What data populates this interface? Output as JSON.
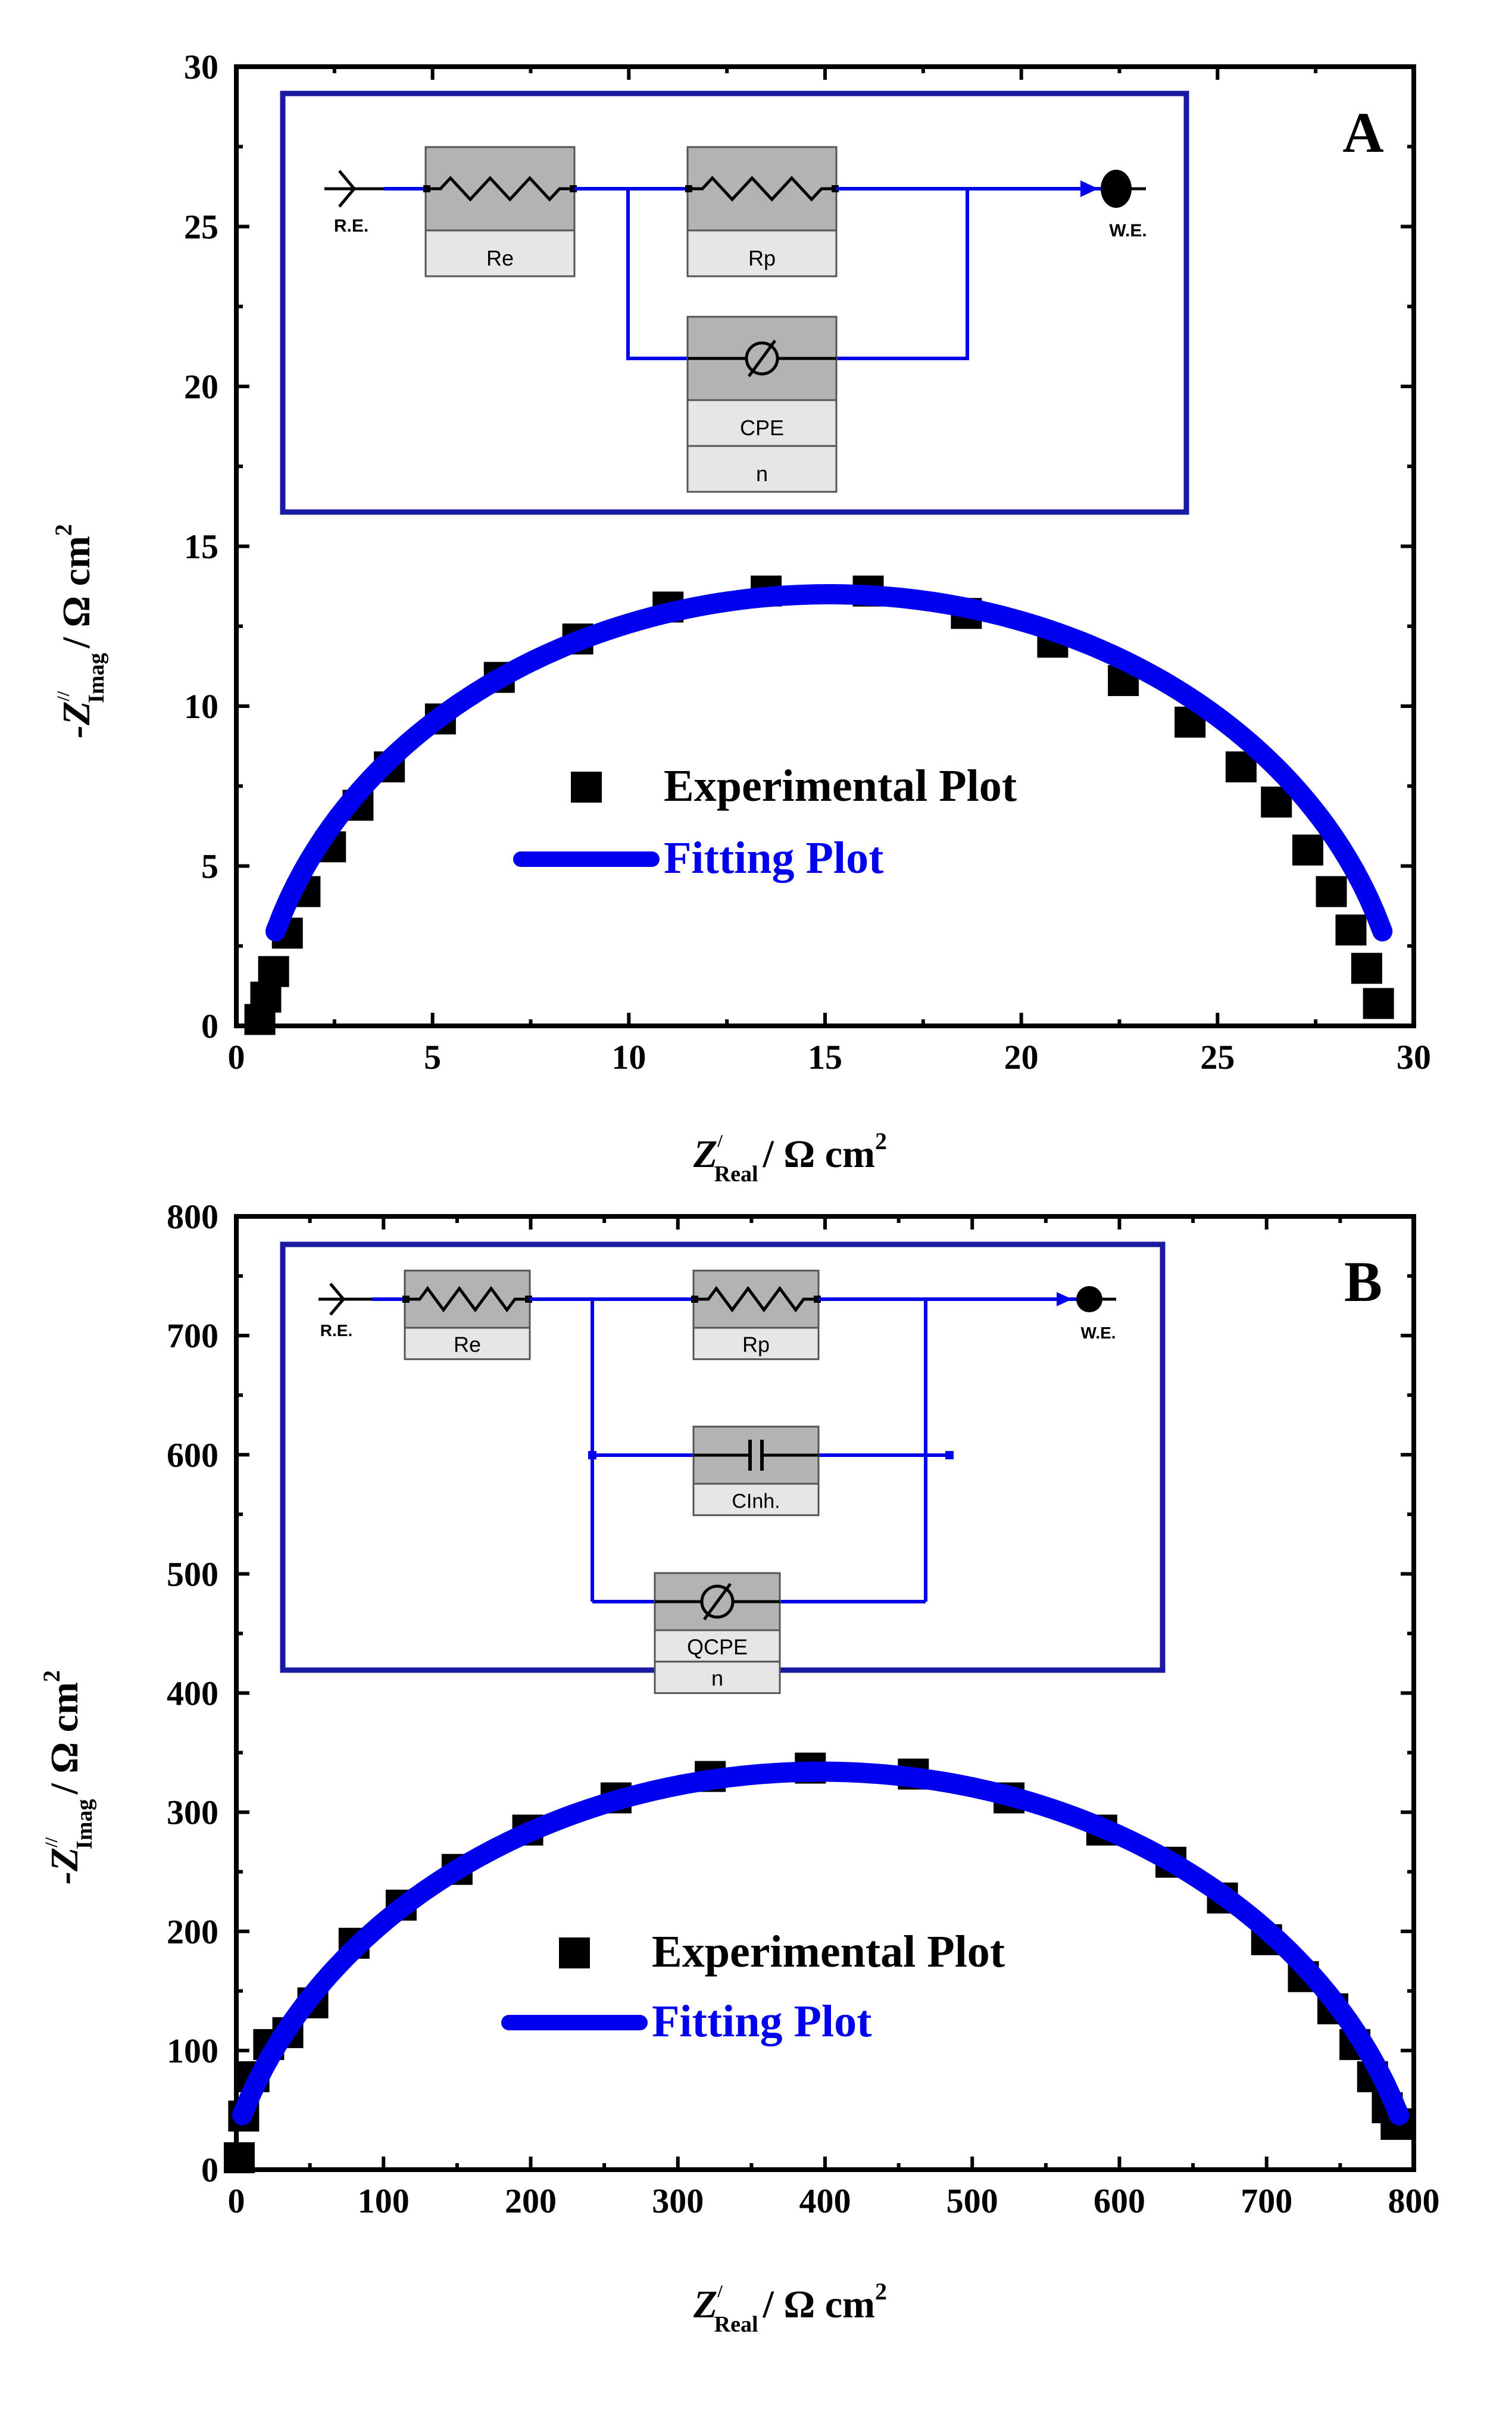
{
  "chart_data": [
    {
      "type": "scatter",
      "panel_letter": "A",
      "xlabel": {
        "main": "Z",
        "prime": "/",
        "sub": "Real",
        "unit": "/ Ω cm",
        "sup": "2"
      },
      "ylabel": {
        "main": "-Z",
        "prime": "//",
        "sub": "Imag",
        "unit": "/ Ω cm",
        "sup": "2"
      },
      "xlim": [
        0,
        30
      ],
      "ylim": [
        0,
        30
      ],
      "xticks": [
        0,
        5,
        10,
        15,
        20,
        25,
        30
      ],
      "yticks": [
        0,
        5,
        10,
        15,
        20,
        25,
        30
      ],
      "xtick_labels": [
        "0",
        "5",
        "10",
        "15",
        "20",
        "25",
        "30"
      ],
      "ytick_labels": [
        "0",
        "5",
        "10",
        "15",
        "20",
        "25",
        "30"
      ],
      "legend": {
        "position": "center",
        "experimental_label": "Experimental Plot",
        "fitting_label": "Fitting Plot"
      },
      "series": [
        {
          "name": "Experimental Plot",
          "kind": "markers",
          "points": [
            [
              0.6,
              0.2
            ],
            [
              0.75,
              0.9
            ],
            [
              0.95,
              1.7
            ],
            [
              1.3,
              2.9
            ],
            [
              1.75,
              4.2
            ],
            [
              2.4,
              5.6
            ],
            [
              3.1,
              6.9
            ],
            [
              3.9,
              8.1
            ],
            [
              5.2,
              9.6
            ],
            [
              6.7,
              10.9
            ],
            [
              8.7,
              12.1
            ],
            [
              11.0,
              13.1
            ],
            [
              13.5,
              13.6
            ],
            [
              16.1,
              13.6
            ],
            [
              18.6,
              12.9
            ],
            [
              20.8,
              12.0
            ],
            [
              22.6,
              10.8
            ],
            [
              24.3,
              9.5
            ],
            [
              25.6,
              8.1
            ],
            [
              26.5,
              7.0
            ],
            [
              27.3,
              5.5
            ],
            [
              27.9,
              4.2
            ],
            [
              28.4,
              3.0
            ],
            [
              28.8,
              1.8
            ],
            [
              29.1,
              0.7
            ]
          ]
        },
        {
          "name": "Fitting Plot",
          "kind": "arc",
          "center": [
            15.1,
            -1.2
          ],
          "radius": 14.7,
          "x_start": 1.0,
          "x_end": 29.2
        }
      ],
      "inset": {
        "ref_label": "R.E.",
        "work_label": "W.E.",
        "elements": [
          "Re",
          "Rp",
          "CPE",
          "n"
        ]
      }
    },
    {
      "type": "scatter",
      "panel_letter": "B",
      "xlabel": {
        "main": "Z",
        "prime": "/",
        "sub": "Real",
        "unit": "/ Ω cm",
        "sup": "2"
      },
      "ylabel": {
        "main": "-Z",
        "prime": "//",
        "sub": "Imag",
        "unit": "/ Ω cm",
        "sup": "2"
      },
      "xlim": [
        0,
        800
      ],
      "ylim": [
        0,
        800
      ],
      "xticks": [
        0,
        100,
        200,
        300,
        400,
        500,
        600,
        700,
        800
      ],
      "yticks": [
        0,
        100,
        200,
        300,
        400,
        500,
        600,
        700,
        800
      ],
      "xtick_labels": [
        "0",
        "100",
        "200",
        "300",
        "400",
        "500",
        "600",
        "700",
        "800"
      ],
      "ytick_labels": [
        "0",
        "100",
        "200",
        "300",
        "400",
        "500",
        "600",
        "700",
        "800"
      ],
      "legend": {
        "position": "center",
        "experimental_label": "Experimental Plot",
        "fitting_label": "Fitting Plot"
      },
      "series": [
        {
          "name": "Experimental Plot",
          "kind": "markers",
          "points": [
            [
              2,
              10
            ],
            [
              5,
              45
            ],
            [
              12,
              78
            ],
            [
              22,
              105
            ],
            [
              35,
              115
            ],
            [
              52,
              140
            ],
            [
              80,
              190
            ],
            [
              112,
              222
            ],
            [
              150,
              252
            ],
            [
              198,
              285
            ],
            [
              258,
              312
            ],
            [
              322,
              330
            ],
            [
              390,
              337
            ],
            [
              460,
              332
            ],
            [
              525,
              312
            ],
            [
              588,
              285
            ],
            [
              635,
              258
            ],
            [
              670,
              228
            ],
            [
              700,
              193
            ],
            [
              725,
              162
            ],
            [
              745,
              135
            ],
            [
              760,
              105
            ],
            [
              772,
              78
            ],
            [
              782,
              52
            ],
            [
              788,
              38
            ]
          ]
        },
        {
          "name": "Fitting Plot",
          "kind": "arc",
          "center": [
            397,
            -78
          ],
          "radius": 412,
          "x_start": 4,
          "x_end": 790
        }
      ],
      "inset": {
        "ref_label": "R.E.",
        "work_label": "W.E.",
        "elements": [
          "Re",
          "Rp",
          "CInh.",
          "QCPE",
          "n"
        ]
      }
    }
  ]
}
